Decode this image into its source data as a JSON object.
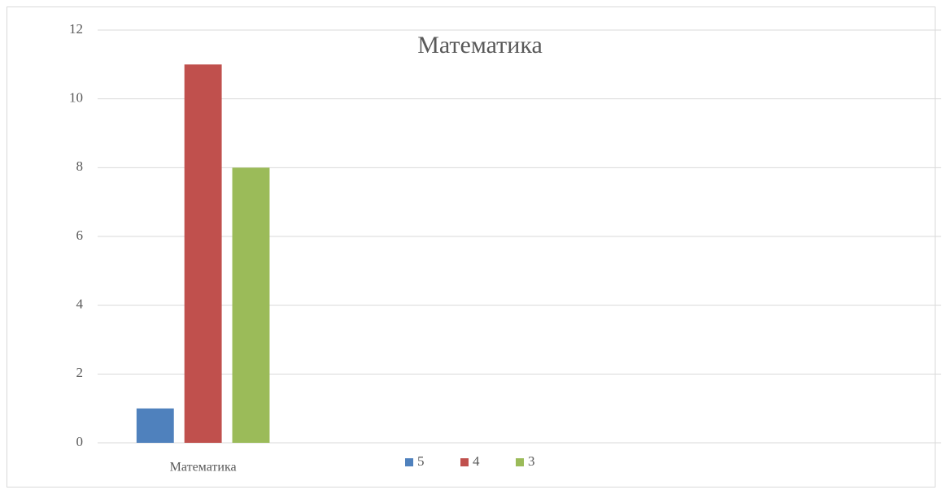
{
  "chart_data": {
    "type": "bar",
    "title": "Математика",
    "categories": [
      "Математика",
      null,
      null,
      null
    ],
    "series": [
      {
        "name": "5",
        "color": "#4f81bd",
        "values": [
          1,
          null,
          null,
          null
        ]
      },
      {
        "name": "4",
        "color": "#c0504d",
        "values": [
          11,
          null,
          null,
          null
        ]
      },
      {
        "name": "3",
        "color": "#9bbb59",
        "values": [
          8,
          null,
          null,
          null
        ]
      }
    ],
    "ylim": [
      0,
      12
    ],
    "yticks": [
      0,
      2,
      4,
      6,
      8,
      10,
      12
    ],
    "grid": true,
    "legend": "bottom"
  }
}
